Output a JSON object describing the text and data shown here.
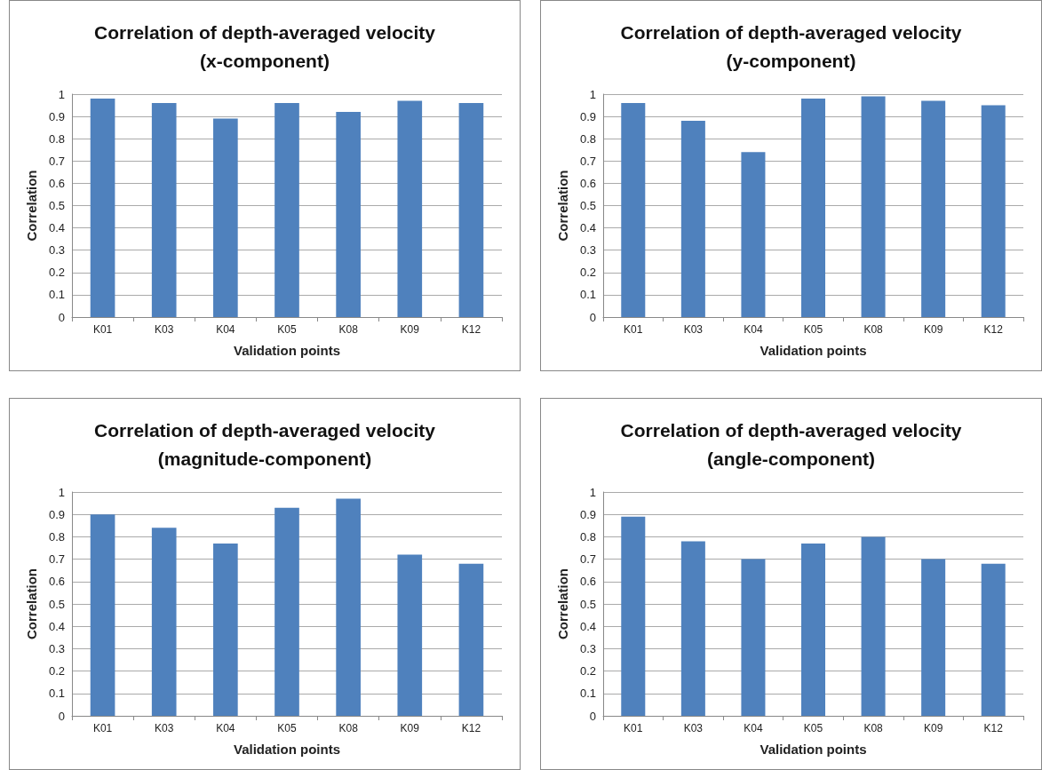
{
  "chart_data": [
    {
      "type": "bar",
      "title": "Correlation of depth-averaged velocity\n(x-component)",
      "xlabel": "Validation points",
      "ylabel": "Correlation",
      "categories": [
        "K01",
        "K03",
        "K04",
        "K05",
        "K08",
        "K09",
        "K12"
      ],
      "values": [
        0.98,
        0.96,
        0.89,
        0.96,
        0.92,
        0.97,
        0.96
      ],
      "color": "#4f81bd",
      "ylim": [
        0,
        1
      ],
      "yticks": [
        0,
        0.1,
        0.2,
        0.3,
        0.4,
        0.5,
        0.6,
        0.7,
        0.8,
        0.9,
        1
      ],
      "grid": "y"
    },
    {
      "type": "bar",
      "title": "Correlation of depth-averaged velocity\n(y-component)",
      "xlabel": "Validation points",
      "ylabel": "Correlation",
      "categories": [
        "K01",
        "K03",
        "K04",
        "K05",
        "K08",
        "K09",
        "K12"
      ],
      "values": [
        0.96,
        0.88,
        0.74,
        0.98,
        0.99,
        0.97,
        0.95
      ],
      "color": "#4f81bd",
      "ylim": [
        0,
        1
      ],
      "yticks": [
        0,
        0.1,
        0.2,
        0.3,
        0.4,
        0.5,
        0.6,
        0.7,
        0.8,
        0.9,
        1
      ],
      "grid": "y"
    },
    {
      "type": "bar",
      "title": "Correlation of depth-averaged velocity\n(magnitude-component)",
      "xlabel": "Validation points",
      "ylabel": "Correlation",
      "categories": [
        "K01",
        "K03",
        "K04",
        "K05",
        "K08",
        "K09",
        "K12"
      ],
      "values": [
        0.9,
        0.84,
        0.77,
        0.93,
        0.97,
        0.72,
        0.68
      ],
      "color": "#4f81bd",
      "ylim": [
        0,
        1
      ],
      "yticks": [
        0,
        0.1,
        0.2,
        0.3,
        0.4,
        0.5,
        0.6,
        0.7,
        0.8,
        0.9,
        1
      ],
      "grid": "y"
    },
    {
      "type": "bar",
      "title": "Correlation of depth-averaged velocity\n(angle-component)",
      "xlabel": "Validation points",
      "ylabel": "Correlation",
      "categories": [
        "K01",
        "K03",
        "K04",
        "K05",
        "K08",
        "K09",
        "K12"
      ],
      "values": [
        0.89,
        0.78,
        0.7,
        0.77,
        0.8,
        0.7,
        0.68
      ],
      "color": "#4f81bd",
      "ylim": [
        0,
        1
      ],
      "yticks": [
        0,
        0.1,
        0.2,
        0.3,
        0.4,
        0.5,
        0.6,
        0.7,
        0.8,
        0.9,
        1
      ],
      "grid": "y"
    }
  ]
}
